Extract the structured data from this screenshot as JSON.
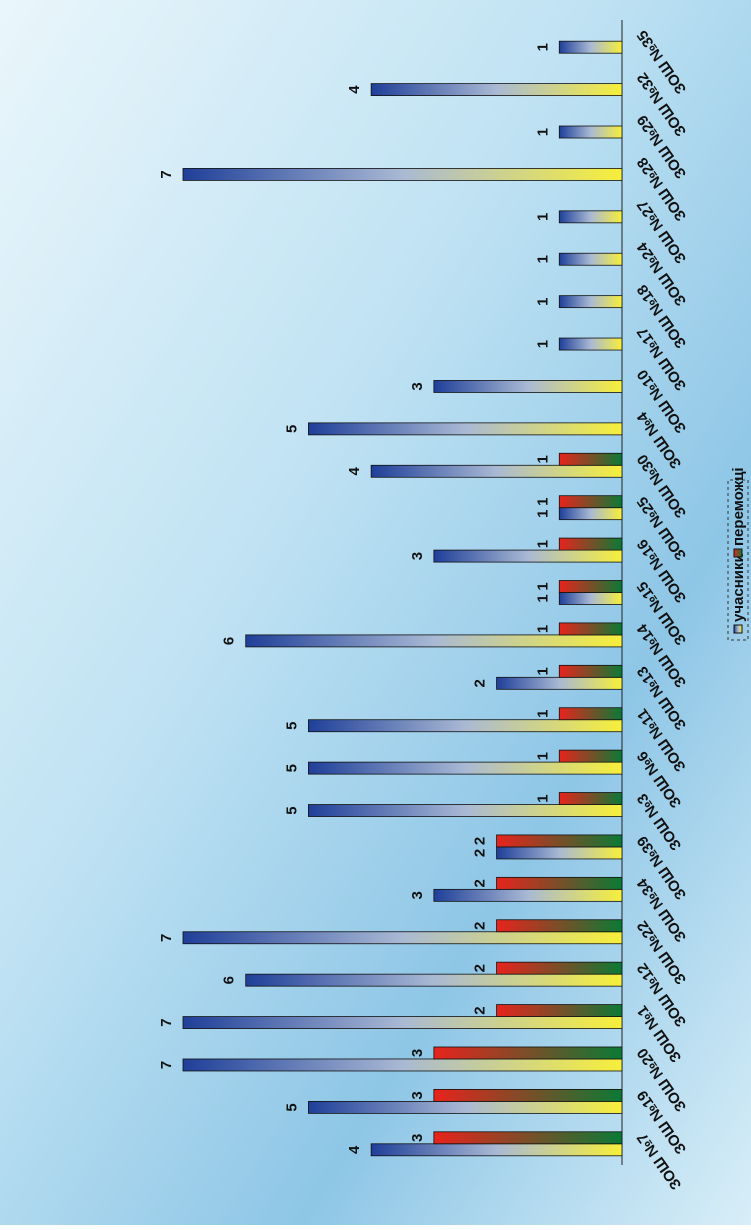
{
  "chart_data": {
    "type": "bar",
    "categories": [
      "ЗОШ №7",
      "ЗОШ №19",
      "ЗОШ №20",
      "ЗОШ №1",
      "ЗОШ №12",
      "ЗОШ №22",
      "ЗОШ №34",
      "ЗОШ №39",
      "ЗОШ №3",
      "ЗОШ №6",
      "ЗОШ №11",
      "ЗОШ №13",
      "ЗОШ №14",
      "ЗОШ №15",
      "ЗОШ №16",
      "ЗОШ №25",
      "ЗОШ №30",
      "ЗОШ №4",
      "ЗОШ №10",
      "ЗОШ №17",
      "ЗОШ №18",
      "ЗОШ №24",
      "ЗОШ №27",
      "ЗОШ №28",
      "ЗОШ №29",
      "ЗОШ №32",
      "ЗОШ №35"
    ],
    "series": [
      {
        "name": "учасники",
        "color": "#1f3f99",
        "values": [
          4,
          5,
          7,
          7,
          6,
          7,
          3,
          2,
          5,
          5,
          5,
          2,
          6,
          1,
          3,
          1,
          4,
          5,
          3,
          1,
          1,
          1,
          1,
          7,
          1,
          4,
          1
        ]
      },
      {
        "name": "переможці",
        "color": "#e8231c",
        "values": [
          3,
          3,
          3,
          2,
          2,
          2,
          2,
          2,
          1,
          1,
          1,
          1,
          1,
          1,
          1,
          1,
          1,
          null,
          null,
          null,
          null,
          null,
          null,
          null,
          null,
          null,
          null
        ]
      }
    ],
    "ylim": [
      0,
      7
    ]
  }
}
